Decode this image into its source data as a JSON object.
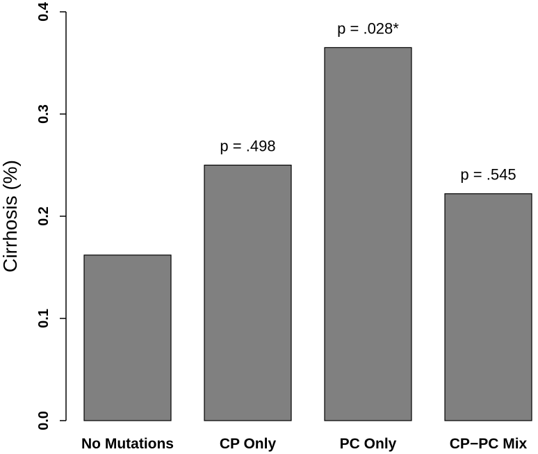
{
  "chart_data": {
    "type": "bar",
    "title": "",
    "xlabel": "",
    "ylabel": "Cirrhosis (%)",
    "ylim": [
      0,
      0.4
    ],
    "yticks": [
      "0.0",
      "0.1",
      "0.2",
      "0.3",
      "0.4"
    ],
    "categories": [
      "No Mutations",
      "CP Only",
      "PC Only",
      "CP−PC Mix"
    ],
    "values": [
      0.162,
      0.25,
      0.365,
      0.222
    ],
    "annotations": [
      "",
      "p = .498",
      "p = .028*",
      "p = .545"
    ],
    "bar_color": "#808080",
    "grid": false,
    "legend": "none"
  }
}
